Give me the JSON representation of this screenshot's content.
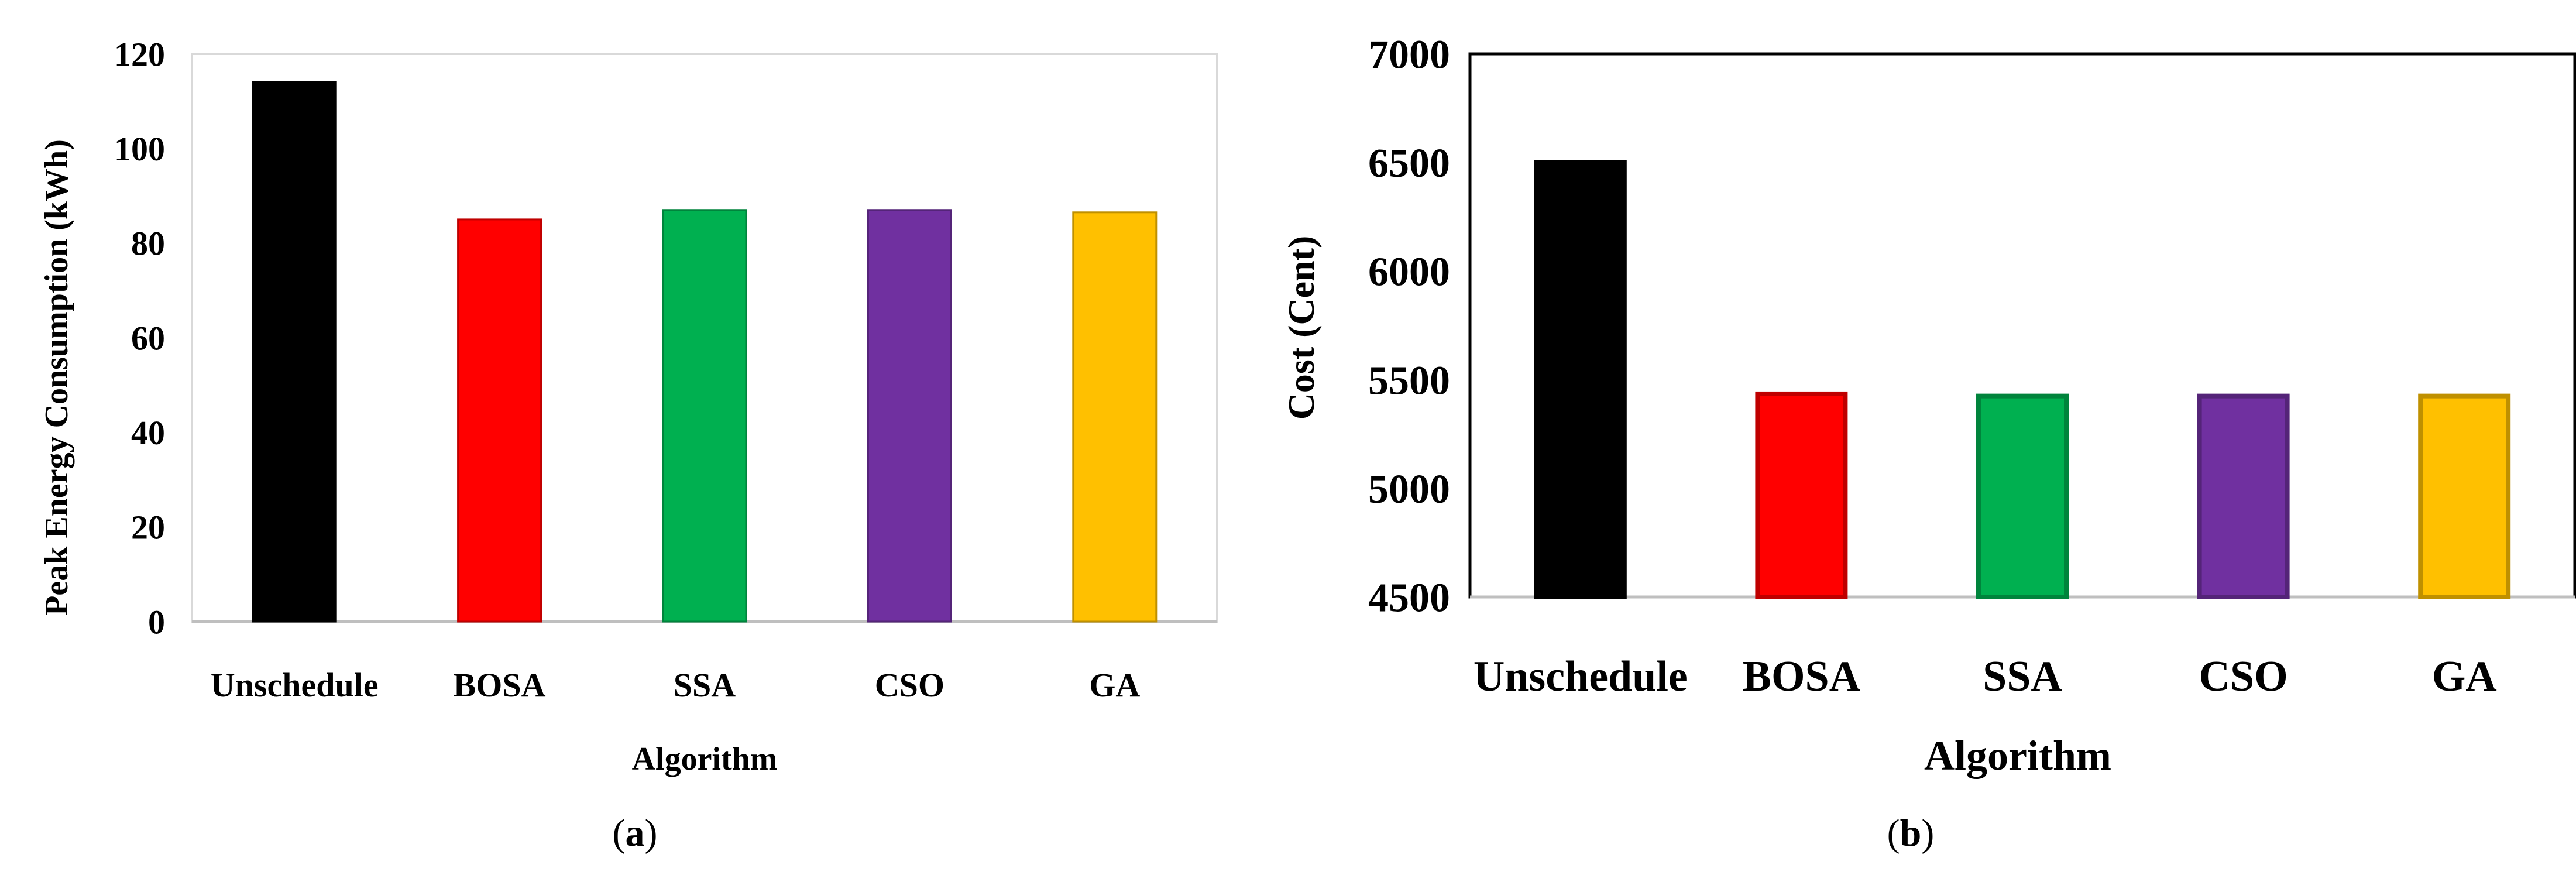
{
  "chart_data": [
    {
      "type": "bar",
      "panel_label": "a",
      "categories": [
        "Unschedule",
        "BOSA",
        "SSA",
        "CSO",
        "GA"
      ],
      "values": [
        114,
        85,
        87,
        87,
        86.5
      ],
      "colors": [
        "#000000",
        "#ff0000",
        "#00b050",
        "#7030a0",
        "#ffc000"
      ],
      "xlabel": "Algorithm",
      "ylabel": "Peak Energy Consumption (kWh)",
      "ylim": [
        0,
        120
      ],
      "yticks": [
        "0",
        "20",
        "40",
        "60",
        "80",
        "100",
        "120"
      ],
      "grid": false
    },
    {
      "type": "bar",
      "panel_label": "b",
      "categories": [
        "Unschedule",
        "BOSA",
        "SSA",
        "CSO",
        "GA"
      ],
      "values": [
        6500,
        5435,
        5425,
        5425,
        5425
      ],
      "colors": [
        "#000000",
        "#ff0000",
        "#00b050",
        "#7030a0",
        "#ffc000"
      ],
      "xlabel": "Algorithm",
      "ylabel": "Cost (Cent)",
      "ylim": [
        4500,
        7000
      ],
      "yticks": [
        "4500",
        "5000",
        "5500",
        "6000",
        "6500",
        "7000"
      ],
      "grid": false
    }
  ]
}
